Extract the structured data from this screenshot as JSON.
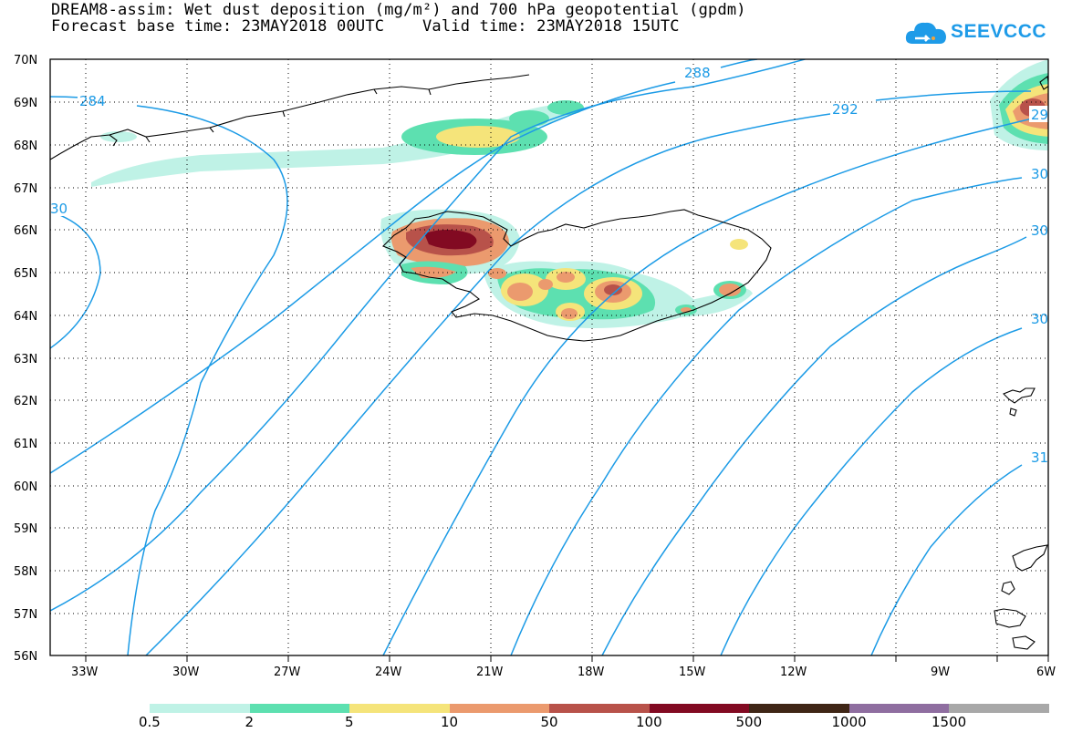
{
  "title_line1": "DREAM8-assim: Wet dust deposition (mg/m²) and 700 hPa geopotential (gpdm)",
  "title_line2": "Forecast base time: 23MAY2018 00UTC    Valid time: 23MAY2018 15UTC",
  "logo_text": "SEEVCCC",
  "lat_labels": [
    "70N",
    "69N",
    "68N",
    "67N",
    "66N",
    "65N",
    "64N",
    "63N",
    "62N",
    "61N",
    "60N",
    "59N",
    "58N",
    "57N",
    "56N"
  ],
  "lon_labels": [
    "33W",
    "30W",
    "27W",
    "24W",
    "21W",
    "18W",
    "15W",
    "12W",
    "9W",
    "6W"
  ],
  "contour_labels": [
    "284",
    "30",
    "288",
    "292",
    "29",
    "30",
    "30",
    "30",
    "31"
  ],
  "legend": {
    "colors": [
      "#bff2e6",
      "#5de0b0",
      "#f5e47a",
      "#eb9a6e",
      "#b8524a",
      "#820a22",
      "#3f2616",
      "#8f6ea0",
      "#a8a8a8"
    ],
    "ticks": [
      "0.5",
      "2",
      "5",
      "10",
      "50",
      "100",
      "500",
      "1000",
      "1500"
    ]
  },
  "colors": {
    "contour": "#1c9be6",
    "coast": "#000000"
  }
}
